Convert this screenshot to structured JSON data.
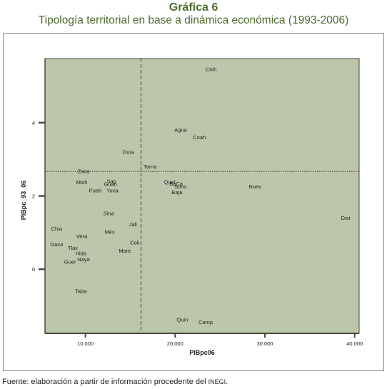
{
  "figure": {
    "title": "Gráfica 6",
    "subtitle": "Tipología territorial en base a dinámica económica (1993-2006)",
    "source_prefix": "Fuente: elaboración a partir de información procedente del ",
    "source_org": "INEGI",
    "source_suffix": "."
  },
  "colors": {
    "plot_bg": "#bcc6aa",
    "title": "#4d6b2e",
    "axis": "#4a4a3a",
    "label": "#1e1e1e"
  },
  "chart_data": {
    "type": "scatter",
    "xlabel": "PIBpc06",
    "ylabel": "PIBpc_93_06",
    "xlim": [
      5500,
      40500
    ],
    "ylim": [
      -1.75,
      5.75
    ],
    "x_ticks": [
      10000,
      20000,
      30000,
      40000
    ],
    "x_tick_labels": [
      "10.000",
      "20.000",
      "30.000",
      "40.000"
    ],
    "y_ticks": [
      0,
      2,
      4
    ],
    "y_tick_labels": [
      "0",
      "2",
      "4"
    ],
    "reference_lines": {
      "x": 16200,
      "y": 2.67
    },
    "points": [
      {
        "label": "Chih",
        "x": 24000,
        "y": 5.45
      },
      {
        "label": "Agua",
        "x": 20600,
        "y": 3.8
      },
      {
        "label": "Coah",
        "x": 22700,
        "y": 3.6
      },
      {
        "label": "Dura",
        "x": 14800,
        "y": 3.2
      },
      {
        "label": "Tama",
        "x": 17200,
        "y": 2.8
      },
      {
        "label": "Zaca",
        "x": 9800,
        "y": 2.67
      },
      {
        "label": "Mich",
        "x": 9600,
        "y": 2.37
      },
      {
        "label": "Sap",
        "x": 12900,
        "y": 2.4
      },
      {
        "label": "Guan",
        "x": 12800,
        "y": 2.32
      },
      {
        "label": "Pueb",
        "x": 11100,
        "y": 2.15
      },
      {
        "label": "Yuca",
        "x": 13000,
        "y": 2.15
      },
      {
        "label": "Quer",
        "x": 19400,
        "y": 2.38
      },
      {
        "label": "BaCa",
        "x": 20100,
        "y": 2.33
      },
      {
        "label": "Sono",
        "x": 20600,
        "y": 2.25
      },
      {
        "label": "Baja",
        "x": 20200,
        "y": 2.1
      },
      {
        "label": "Nuev",
        "x": 28900,
        "y": 2.25
      },
      {
        "label": "Sina",
        "x": 12600,
        "y": 1.52
      },
      {
        "label": "Jali",
        "x": 15300,
        "y": 1.22
      },
      {
        "label": "Dist",
        "x": 39000,
        "y": 1.4
      },
      {
        "label": "Chia",
        "x": 6800,
        "y": 1.1
      },
      {
        "label": "Vera",
        "x": 9600,
        "y": 0.9
      },
      {
        "label": "Méx",
        "x": 12700,
        "y": 1.02
      },
      {
        "label": "Oaxa",
        "x": 6800,
        "y": 0.68
      },
      {
        "label": "Coli",
        "x": 15500,
        "y": 0.72
      },
      {
        "label": "Tlax",
        "x": 8600,
        "y": 0.58
      },
      {
        "label": "More",
        "x": 14400,
        "y": 0.5
      },
      {
        "label": "Hida",
        "x": 9500,
        "y": 0.43
      },
      {
        "label": "Naya",
        "x": 9800,
        "y": 0.27
      },
      {
        "label": "Guer",
        "x": 8300,
        "y": 0.2
      },
      {
        "label": "Taba",
        "x": 9500,
        "y": -0.6
      },
      {
        "label": "Quin",
        "x": 20800,
        "y": -1.38
      },
      {
        "label": "Camp",
        "x": 23400,
        "y": -1.45
      }
    ]
  }
}
